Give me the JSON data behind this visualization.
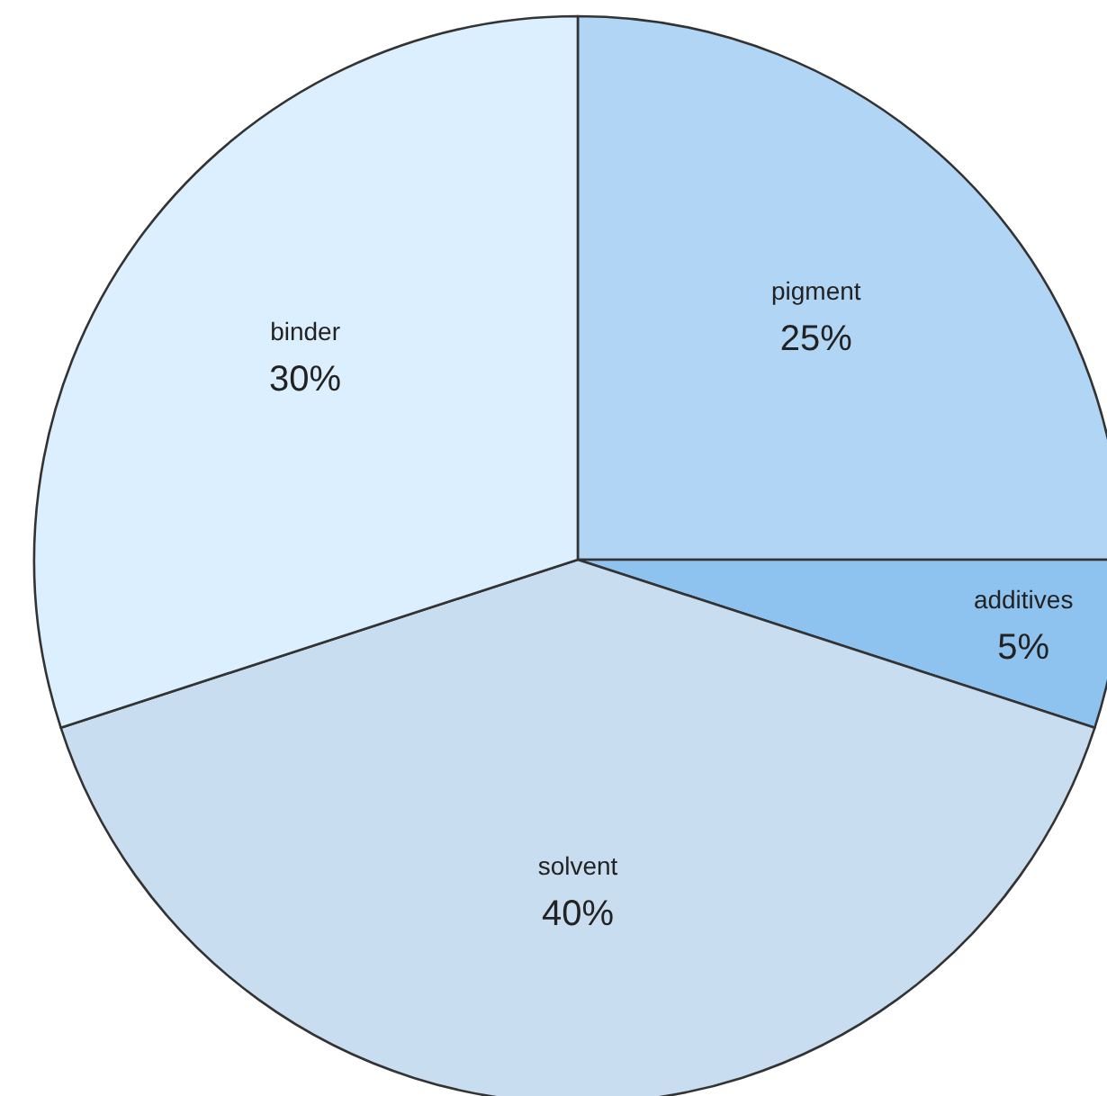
{
  "chart_data": {
    "type": "pie",
    "categories": [
      "pigment",
      "additives",
      "solvent",
      "binder"
    ],
    "values": [
      25,
      5,
      40,
      30
    ],
    "value_labels": [
      "25%",
      "5%",
      "40%",
      "30%"
    ],
    "colors": [
      "#b1d5f5",
      "#8fc3ef",
      "#c9ddf0",
      "#dcefff"
    ],
    "legend": false
  }
}
